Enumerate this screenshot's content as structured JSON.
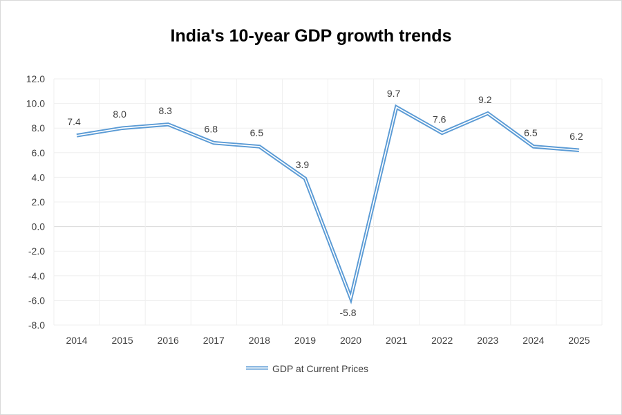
{
  "chart_data": {
    "type": "line",
    "title": "India's 10-year GDP growth trends",
    "xlabel": "",
    "ylabel": "",
    "categories": [
      "2014",
      "2015",
      "2016",
      "2017",
      "2018",
      "2019",
      "2020",
      "2021",
      "2022",
      "2023",
      "2024",
      "2025"
    ],
    "series": [
      {
        "name": "GDP at Current Prices",
        "values": [
          7.4,
          8.0,
          8.3,
          6.8,
          6.5,
          3.9,
          -5.8,
          9.7,
          7.6,
          9.2,
          6.5,
          6.2
        ],
        "labels": [
          "7.4",
          "8.0",
          "8.3",
          "6.8",
          "6.5",
          "3.9",
          "-5.8",
          "9.7",
          "7.6",
          "9.2",
          "6.5",
          "6.2"
        ],
        "color": "#5b9bd5"
      }
    ],
    "ylim": [
      -8.0,
      12.0
    ],
    "y_ticks": [
      "-8.0",
      "-6.0",
      "-4.0",
      "-2.0",
      "0.0",
      "2.0",
      "4.0",
      "6.0",
      "8.0",
      "10.0",
      "12.0"
    ],
    "grid": true,
    "legend_position": "bottom"
  }
}
